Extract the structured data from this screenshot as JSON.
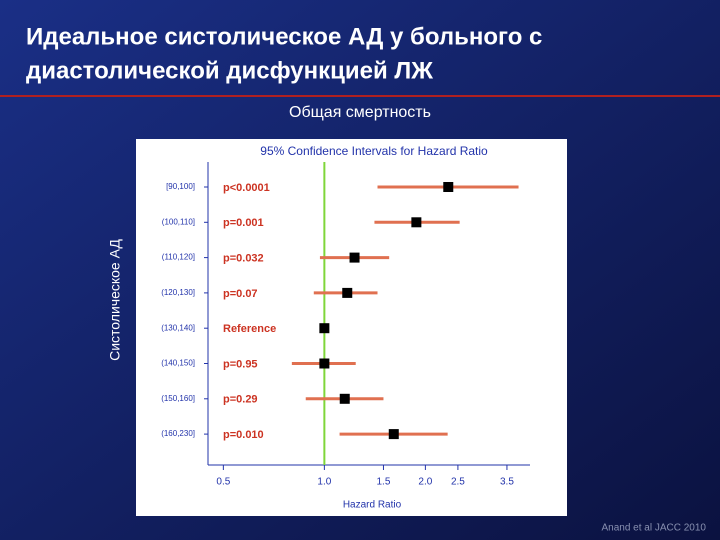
{
  "chart_data": {
    "type": "forest",
    "title": [
      "Идеальное систолическое АД у больного с",
      "диастолической дисфункцией ЛЖ"
    ],
    "subtitle": "Общая смертность",
    "y_label": "Систолическое АД",
    "plot_title": "95% Confidence Intervals for Hazard Ratio",
    "x_label": "Hazard Ratio",
    "source": "Anand et al JACC 2010",
    "categories": [
      "[90,100]",
      "(100,110]",
      "(110,120]",
      "(120,130]",
      "(130,140]",
      "(140,150]",
      "(150,160]",
      "(160,230]"
    ],
    "values": [
      2.34,
      1.88,
      1.23,
      1.17,
      1.0,
      1.0,
      1.15,
      1.61
    ],
    "lower": [
      1.44,
      1.41,
      0.97,
      0.93,
      null,
      0.8,
      0.88,
      1.11
    ],
    "upper": [
      3.79,
      2.53,
      1.56,
      1.44,
      null,
      1.24,
      1.5,
      2.33
    ],
    "annotations": [
      "p<0.0001",
      "p=0.001",
      "p=0.032",
      "p=0.07",
      "Reference",
      "p=0.95",
      "p=0.29",
      "p=0.010"
    ],
    "xlim": [
      0.45,
      4.1
    ],
    "xticks": [
      0.5,
      {
        "value": 1,
        "label": "1.0"
      },
      1.5,
      {
        "value": 2,
        "label": "2.0"
      },
      2.5,
      3.5
    ],
    "log_x": true,
    "reference_line": 1,
    "reference_color": "#7fd63a",
    "ci_color": "#e07050",
    "point_color": "#000000"
  }
}
